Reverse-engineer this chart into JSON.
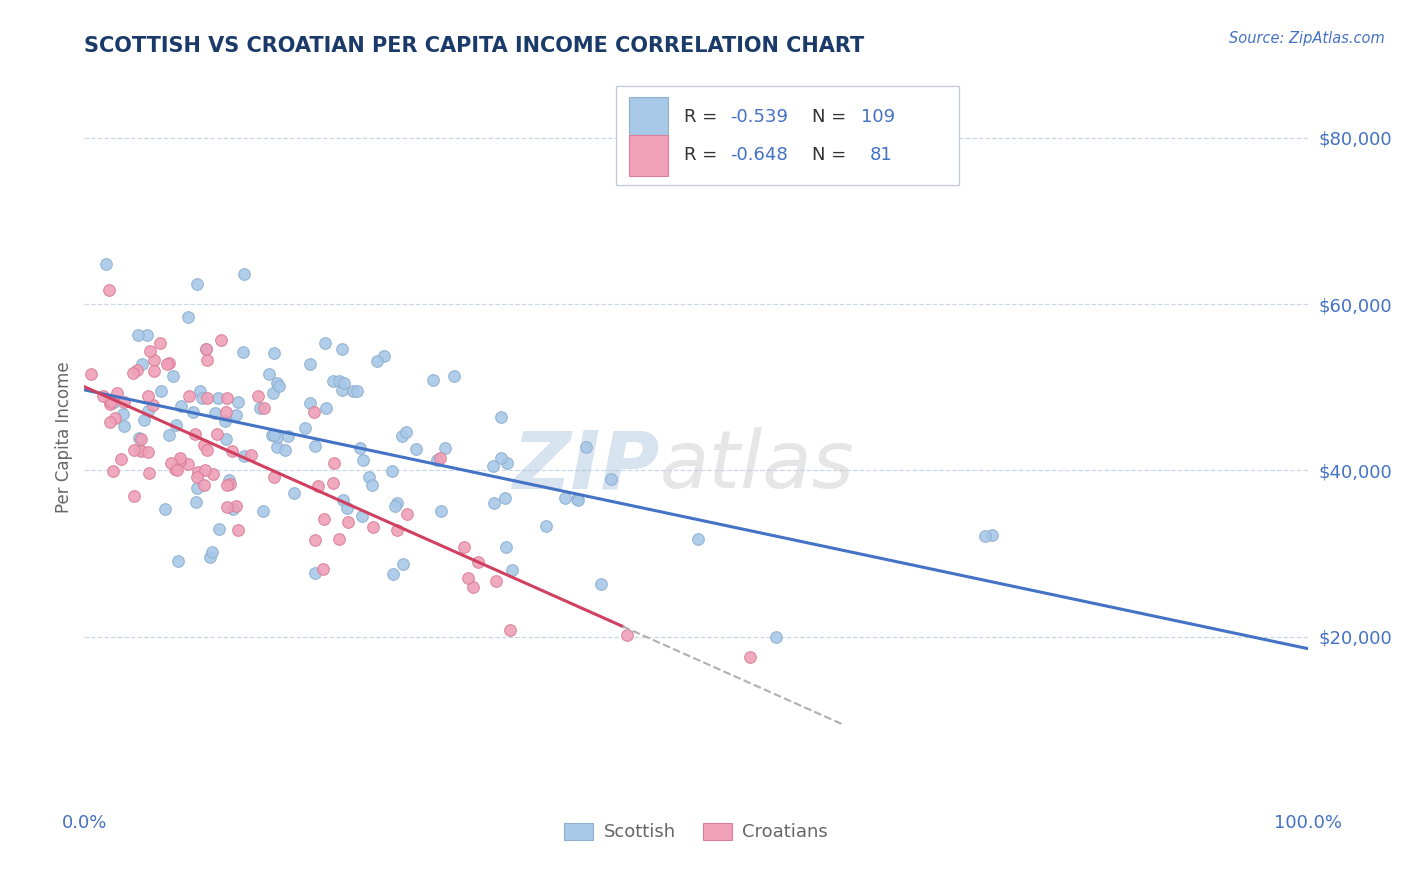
{
  "title": "SCOTTISH VS CROATIAN PER CAPITA INCOME CORRELATION CHART",
  "source_text": "Source: ZipAtlas.com",
  "ylabel": "Per Capita Income",
  "xlim": [
    0.0,
    1.0
  ],
  "ylim": [
    0,
    88000
  ],
  "yticks": [
    20000,
    40000,
    60000,
    80000
  ],
  "ytick_labels": [
    "$20,000",
    "$40,000",
    "$60,000",
    "$80,000"
  ],
  "xtick_labels": [
    "0.0%",
    "100.0%"
  ],
  "scottish_color": "#a8c8e8",
  "scottish_edge_color": "#90b0d0",
  "croatian_color": "#f0a0b8",
  "croatian_edge_color": "#d88098",
  "scottish_line_color": "#4472c4",
  "croatian_line_color": "#d04060",
  "dashed_line_color": "#b0b0b0",
  "title_color": "#1a3a6a",
  "axis_label_color": "#666666",
  "tick_color": "#4472c4",
  "watermark_zip_color": "#b0c8e0",
  "watermark_atlas_color": "#c8c8c8",
  "background_color": "#ffffff",
  "grid_color": "#c8d8e8",
  "legend_box_color": "#ffffff",
  "legend_border_color": "#c0c8d8",
  "seed": 42,
  "n_scottish": 109,
  "n_croatian": 81,
  "scot_intercept": 50000,
  "scot_slope": -32000,
  "scot_noise": 7500,
  "croat_intercept": 48000,
  "croat_slope": -55000,
  "croat_noise": 6000,
  "scot_xbeta_a": 1.4,
  "scot_xbeta_b": 5.5,
  "croat_xbeta_a": 1.2,
  "croat_xbeta_b": 8.0
}
